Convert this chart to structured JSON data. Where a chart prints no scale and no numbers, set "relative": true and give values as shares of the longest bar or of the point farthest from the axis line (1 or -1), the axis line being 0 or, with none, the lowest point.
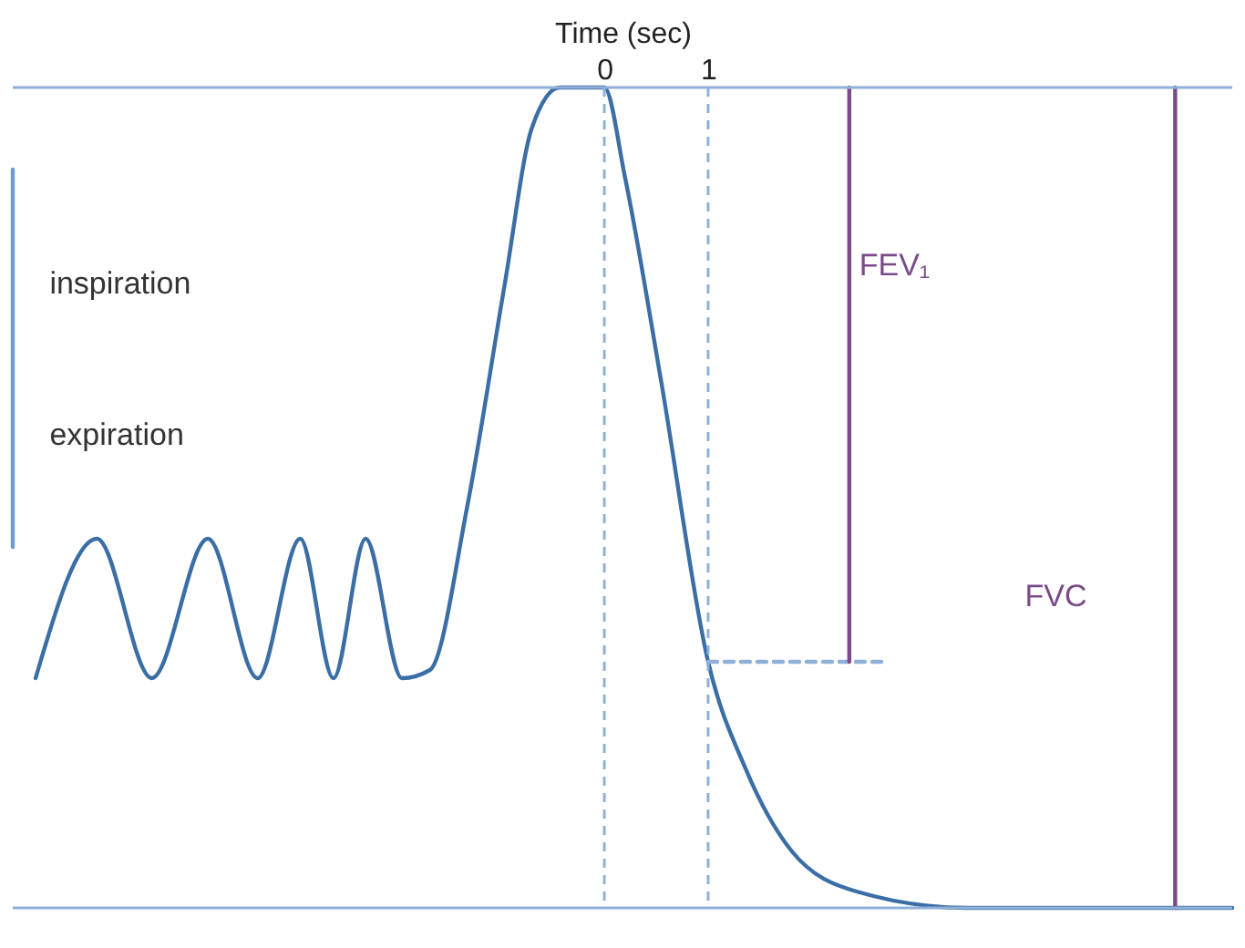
{
  "chart_data": {
    "type": "line",
    "relative": true,
    "xlabel": "Time (sec)",
    "xlim": [
      -5.7,
      6.05
    ],
    "xticks": [
      0,
      1
    ],
    "tick_labels": "x",
    "grid": false,
    "marker": "none",
    "series": [
      {
        "color": "#3a6ea5",
        "x": [
          -5.48,
          -4.89,
          -4.36,
          -3.82,
          -3.34,
          -2.93,
          -2.61,
          -2.3,
          -1.95,
          -1.68,
          -1.32,
          -0.96,
          -0.7,
          -0.43,
          0,
          0.2,
          0.55,
          1,
          1.36,
          1.8,
          2.43,
          3.5,
          6.05
        ],
        "values": [
          0.28,
          0.45,
          0.28,
          0.45,
          0.28,
          0.45,
          0.28,
          0.45,
          0.28,
          0.29,
          0.49,
          0.76,
          0.95,
          1,
          1,
          0.89,
          0.64,
          0.3,
          0.17,
          0.07,
          0.02,
          0,
          0
        ]
      },
      {
        "color": "#8fb0d8",
        "line_style": "dashed",
        "x": [
          1,
          2.7
        ],
        "values": [
          0.3,
          0.3
        ]
      },
      {
        "color": "#7a4a8a",
        "x": [
          2.36,
          2.36
        ],
        "values": [
          1,
          0.3
        ]
      },
      {
        "color": "#7a4a8a",
        "x": [
          5.5,
          5.5
        ],
        "values": [
          1,
          0
        ]
      },
      {
        "color": "#6f9ad0",
        "x": [
          -5.7,
          -5.7
        ],
        "values": [
          0.9,
          0.44
        ]
      }
    ],
    "ref_lines": [
      {
        "axis": "x",
        "value": 0,
        "line_style": "dashed",
        "color": "#8fb0d8"
      },
      {
        "axis": "x",
        "value": 1,
        "line_style": "dashed",
        "color": "#8fb0d8"
      },
      {
        "axis": "y",
        "value": 1,
        "color": "#8fb0d8"
      },
      {
        "axis": "y",
        "value": 0,
        "color": "#8fb0d8"
      }
    ],
    "annotations": [
      "inspiration",
      "expiration",
      "FEV₁",
      "FVC"
    ]
  }
}
